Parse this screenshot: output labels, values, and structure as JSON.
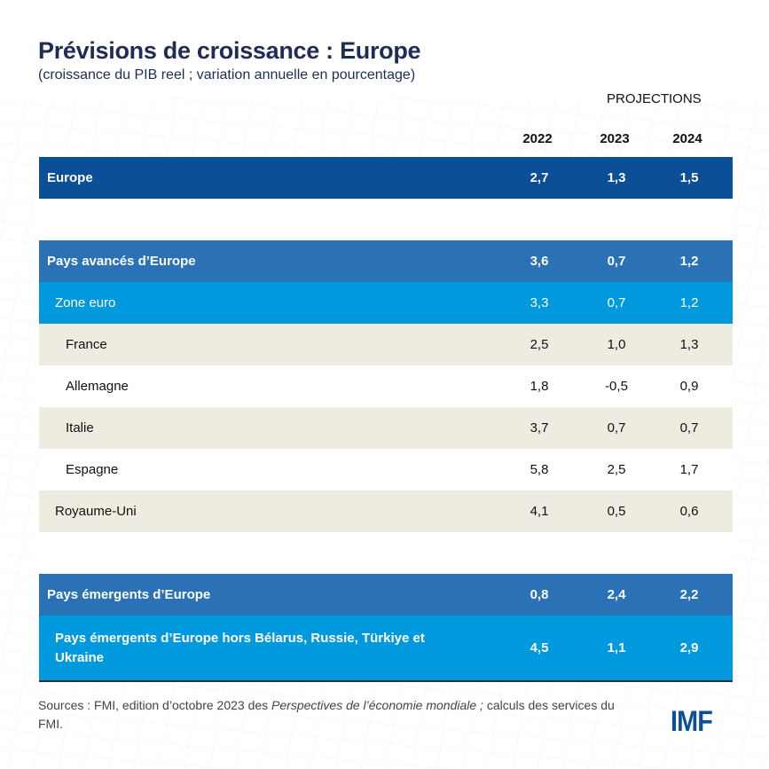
{
  "title": "Prévisions de croissance : Europe",
  "subtitle": "(croissance du PIB reel ; variation annuelle en pourcentage)",
  "projections_label": "PROJECTIONS",
  "colors": {
    "europe": "#0b4f96",
    "group": "#2a72b5",
    "sub": "#0099dd",
    "beige": "#eeebe0",
    "white": "#ffffff",
    "title": "#1f2d55"
  },
  "chart_data": {
    "type": "table",
    "title": "Prévisions de croissance : Europe",
    "columns": [
      "2022",
      "2023",
      "2024"
    ],
    "rows": [
      {
        "label": "Europe",
        "values": [
          "2,7",
          "1,3",
          "1,5"
        ],
        "style": "europe",
        "bold": true,
        "indent": 0
      },
      {
        "label": "",
        "values": [
          "",
          "",
          ""
        ],
        "style": "white",
        "bold": false,
        "indent": 0
      },
      {
        "label": "Pays avancés d’Europe",
        "values": [
          "3,6",
          "0,7",
          "1,2"
        ],
        "style": "group",
        "bold": true,
        "indent": 0
      },
      {
        "label": "Zone euro",
        "values": [
          "3,3",
          "0,7",
          "1,2"
        ],
        "style": "sub",
        "bold": false,
        "indent": 1
      },
      {
        "label": "France",
        "values": [
          "2,5",
          "1,0",
          "1,3"
        ],
        "style": "beige",
        "bold": false,
        "indent": 2
      },
      {
        "label": "Allemagne",
        "values": [
          "1,8",
          "-0,5",
          "0,9"
        ],
        "style": "white",
        "bold": false,
        "indent": 2
      },
      {
        "label": "Italie",
        "values": [
          "3,7",
          "0,7",
          "0,7"
        ],
        "style": "beige",
        "bold": false,
        "indent": 2
      },
      {
        "label": "Espagne",
        "values": [
          "5,8",
          "2,5",
          "1,7"
        ],
        "style": "white",
        "bold": false,
        "indent": 2
      },
      {
        "label": "Royaume-Uni",
        "values": [
          "4,1",
          "0,5",
          "0,6"
        ],
        "style": "beige",
        "bold": false,
        "indent": 1
      },
      {
        "label": "",
        "values": [
          "",
          "",
          ""
        ],
        "style": "white",
        "bold": false,
        "indent": 0
      },
      {
        "label": "Pays émergents d’Europe",
        "values": [
          "0,8",
          "2,4",
          "2,2"
        ],
        "style": "group",
        "bold": true,
        "indent": 0
      },
      {
        "label": "Pays émergents d’Europe hors Bélarus, Russie, Türkiye et Ukraine",
        "values": [
          "4,5",
          "1,1",
          "2,9"
        ],
        "style": "sub",
        "bold": true,
        "indent": 1,
        "tall": true
      }
    ]
  },
  "source_prefix": "Sources : FMI, edition d’octobre 2023 des ",
  "source_italic": "Perspectives de l’économie mondiale ;",
  "source_suffix": " calculs des services du FMI.",
  "logo": "IMF"
}
